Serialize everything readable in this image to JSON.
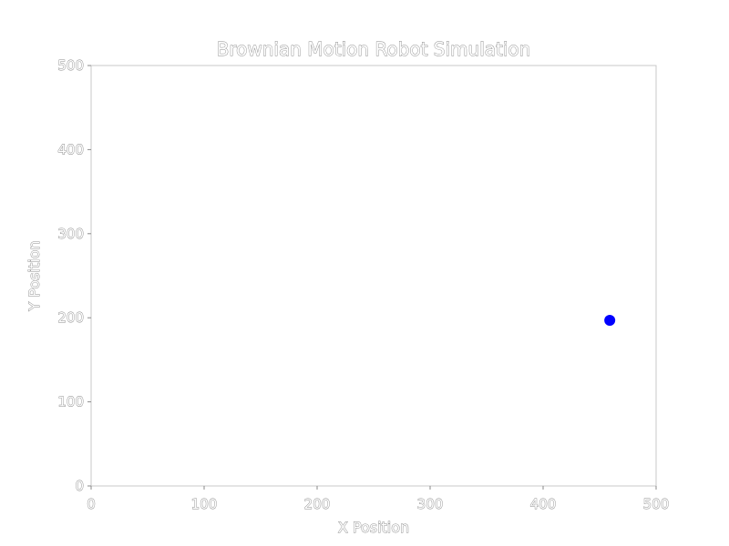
{
  "chart_data": {
    "type": "scatter",
    "title": "Brownian Motion Robot Simulation",
    "xlabel": "X Position",
    "ylabel": "Y Position",
    "xlim": [
      0,
      500
    ],
    "ylim": [
      0,
      500
    ],
    "xticks": [
      0,
      100,
      200,
      300,
      400,
      500
    ],
    "yticks": [
      0,
      100,
      200,
      300,
      400,
      500
    ],
    "grid": false,
    "points": [
      {
        "x": 459,
        "y": 197
      }
    ],
    "colors": {
      "point": "#0000ff",
      "frame": "#c8c8c8"
    }
  }
}
